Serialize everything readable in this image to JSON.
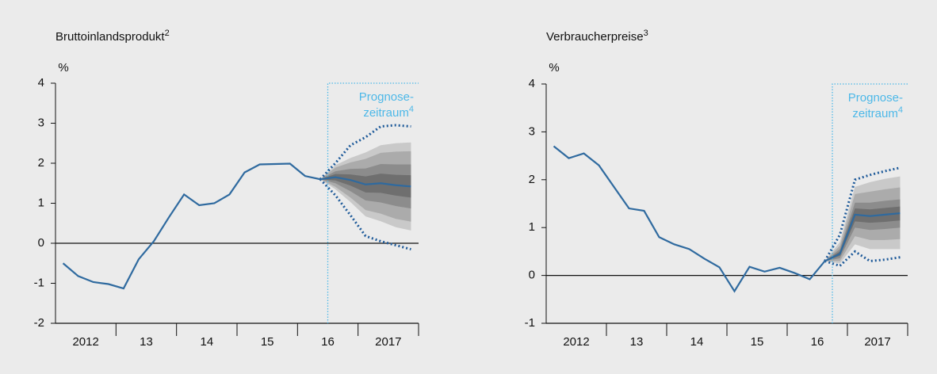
{
  "chart_data": [
    {
      "type": "fan",
      "title": "Bruttoinlandsprodukt",
      "title_sup": "2",
      "y_unit": "%",
      "xlim": [
        2012,
        2018
      ],
      "xticks": [
        {
          "value": 2012.5,
          "label": "2012"
        },
        {
          "value": 2013.5,
          "label": "13"
        },
        {
          "value": 2014.5,
          "label": "14"
        },
        {
          "value": 2015.5,
          "label": "15"
        },
        {
          "value": 2016.5,
          "label": "16"
        },
        {
          "value": 2017.5,
          "label": "2017"
        }
      ],
      "ylim": [
        -2,
        4
      ],
      "yticks": [
        -2,
        -1,
        0,
        1,
        2,
        3,
        4
      ],
      "x": [
        2012.125,
        2012.375,
        2012.625,
        2012.875,
        2013.125,
        2013.375,
        2013.625,
        2013.875,
        2014.125,
        2014.375,
        2014.625,
        2014.875,
        2015.125,
        2015.375,
        2015.625,
        2015.875,
        2016.125,
        2016.375,
        2016.625,
        2016.875,
        2017.125,
        2017.375,
        2017.625,
        2017.875
      ],
      "values": [
        -0.5,
        -0.82,
        -0.97,
        -1.02,
        -1.13,
        -0.4,
        0.05,
        0.65,
        1.22,
        0.95,
        1.0,
        1.22,
        1.77,
        1.97,
        1.98,
        1.99,
        1.68,
        1.6,
        1.65,
        1.58,
        1.47,
        1.5,
        1.45,
        1.42
      ],
      "color": "#2f6a9f",
      "forecast_start": 2016.5,
      "forecast_label": [
        "Prognose-",
        "zeitraum"
      ],
      "forecast_sup": "4",
      "forecast_color": "#4db8e8",
      "fan": {
        "x": [
          2016.375,
          2016.625,
          2016.875,
          2017.125,
          2017.375,
          2017.625,
          2017.875
        ],
        "bands": [
          {
            "color": "#c9c9c9",
            "upper": [
              1.6,
              1.95,
              2.13,
              2.27,
              2.45,
              2.5,
              2.52
            ],
            "lower": [
              1.6,
              1.35,
              1.03,
              0.67,
              0.55,
              0.4,
              0.32
            ]
          },
          {
            "color": "#ababab",
            "upper": [
              1.6,
              1.89,
              2.02,
              2.11,
              2.26,
              2.29,
              2.3
            ],
            "lower": [
              1.6,
              1.41,
              1.14,
              0.83,
              0.74,
              0.61,
              0.54
            ]
          },
          {
            "color": "#8c8c8c",
            "upper": [
              1.6,
              1.8,
              1.86,
              1.87,
              1.98,
              1.97,
              1.97
            ],
            "lower": [
              1.6,
              1.5,
              1.3,
              1.07,
              1.02,
              0.93,
              0.87
            ]
          },
          {
            "color": "#6f6f6f",
            "upper": [
              1.6,
              1.73,
              1.72,
              1.67,
              1.74,
              1.71,
              1.7
            ],
            "lower": [
              1.6,
              1.57,
              1.44,
              1.27,
              1.26,
              1.19,
              1.14
            ]
          }
        ],
        "upper_dotted": [
          1.6,
          2.0,
          2.45,
          2.65,
          2.92,
          2.95,
          2.92
        ],
        "lower_dotted": [
          1.6,
          1.2,
          0.7,
          0.18,
          0.05,
          -0.05,
          -0.15
        ],
        "dotted_color": "#1f5b9a"
      }
    },
    {
      "type": "fan",
      "title": "Verbraucherpreise",
      "title_sup": "3",
      "y_unit": "%",
      "xlim": [
        2012,
        2018
      ],
      "xticks": [
        {
          "value": 2012.5,
          "label": "2012"
        },
        {
          "value": 2013.5,
          "label": "13"
        },
        {
          "value": 2014.5,
          "label": "14"
        },
        {
          "value": 2015.5,
          "label": "15"
        },
        {
          "value": 2016.5,
          "label": "16"
        },
        {
          "value": 2017.5,
          "label": "2017"
        }
      ],
      "ylim": [
        -1,
        4
      ],
      "yticks": [
        -1,
        0,
        1,
        2,
        3,
        4
      ],
      "x": [
        2012.125,
        2012.375,
        2012.625,
        2012.875,
        2013.125,
        2013.375,
        2013.625,
        2013.875,
        2014.125,
        2014.375,
        2014.625,
        2014.875,
        2015.125,
        2015.375,
        2015.625,
        2015.875,
        2016.125,
        2016.375,
        2016.625,
        2016.875,
        2017.125,
        2017.375,
        2017.625,
        2017.875
      ],
      "values": [
        2.7,
        2.45,
        2.55,
        2.3,
        1.85,
        1.4,
        1.35,
        0.8,
        0.65,
        0.55,
        0.35,
        0.17,
        -0.33,
        0.18,
        0.08,
        0.16,
        0.05,
        -0.08,
        0.3,
        0.45,
        1.27,
        1.24,
        1.27,
        1.3
      ],
      "color": "#2f6a9f",
      "forecast_start": 2016.75,
      "forecast_label": [
        "Prognose-",
        "zeitraum"
      ],
      "forecast_sup": "4",
      "forecast_color": "#4db8e8",
      "fan": {
        "x": [
          2016.625,
          2016.875,
          2017.125,
          2017.375,
          2017.625,
          2017.875
        ],
        "bands": [
          {
            "color": "#c9c9c9",
            "upper": [
              0.3,
              0.7,
              1.85,
              1.95,
              2.02,
              2.07
            ],
            "lower": [
              0.3,
              0.25,
              0.65,
              0.55,
              0.55,
              0.55
            ]
          },
          {
            "color": "#ababab",
            "upper": [
              0.3,
              0.62,
              1.7,
              1.75,
              1.8,
              1.84
            ],
            "lower": [
              0.3,
              0.3,
              0.82,
              0.74,
              0.74,
              0.76
            ]
          },
          {
            "color": "#8c8c8c",
            "upper": [
              0.3,
              0.55,
              1.52,
              1.52,
              1.56,
              1.59
            ],
            "lower": [
              0.3,
              0.36,
              1.0,
              0.95,
              0.97,
              1.0
            ]
          },
          {
            "color": "#6f6f6f",
            "upper": [
              0.3,
              0.5,
              1.4,
              1.38,
              1.41,
              1.44
            ],
            "lower": [
              0.3,
              0.41,
              1.13,
              1.1,
              1.12,
              1.15
            ]
          }
        ],
        "upper_dotted": [
          0.3,
          0.85,
          2.0,
          2.1,
          2.18,
          2.25
        ],
        "lower_dotted": [
          0.3,
          0.2,
          0.5,
          0.3,
          0.33,
          0.38
        ],
        "dotted_color": "#1f5b9a"
      }
    }
  ]
}
